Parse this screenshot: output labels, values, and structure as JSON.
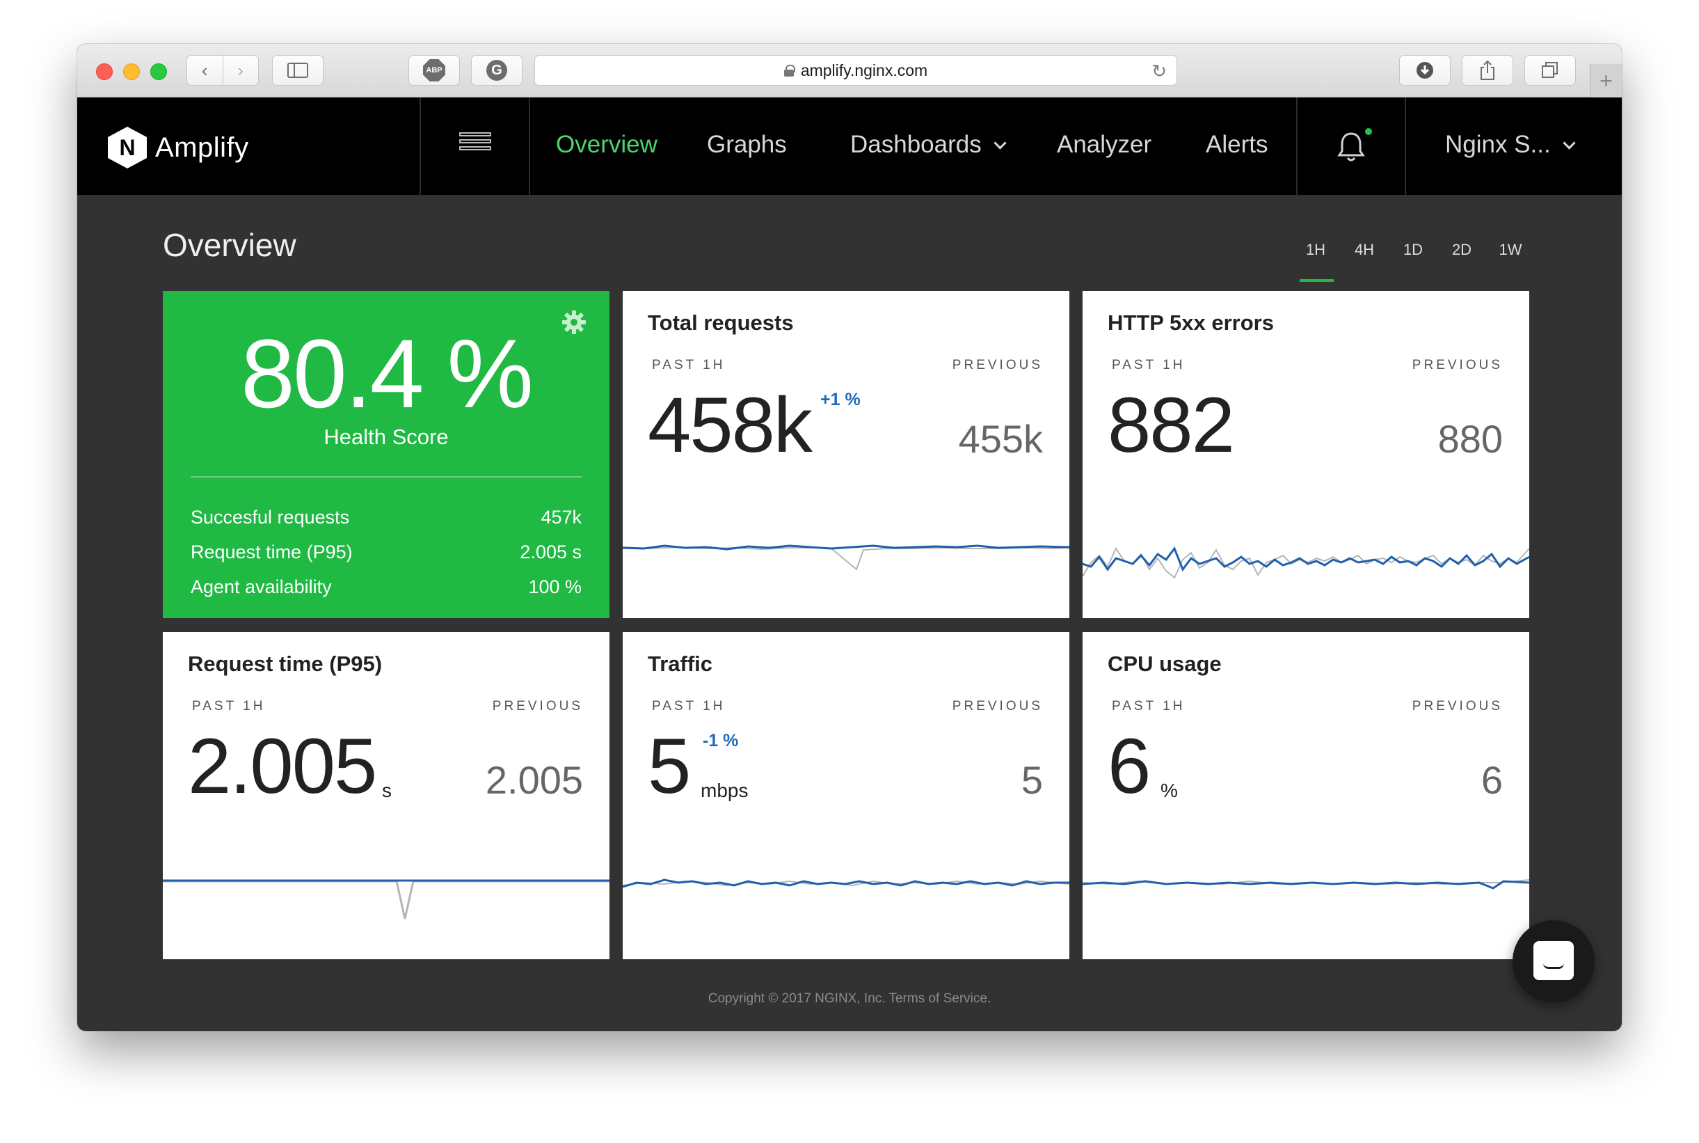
{
  "browser": {
    "url": "amplify.nginx.com",
    "abp_label": "ABP",
    "g_label": "G"
  },
  "navbar": {
    "brand": "Amplify",
    "logo_letter": "N",
    "links": {
      "overview": "Overview",
      "graphs": "Graphs",
      "dashboards": "Dashboards",
      "analyzer": "Analyzer",
      "alerts": "Alerts"
    },
    "user": "Nginx S...",
    "accent_color": "#4cd46e"
  },
  "page": {
    "title": "Overview",
    "time_ranges": [
      "1H",
      "4H",
      "1D",
      "2D",
      "1W"
    ],
    "active_range": "1H"
  },
  "health": {
    "value": "80.4 %",
    "label": "Health Score",
    "color": "#1fb944",
    "stats": [
      {
        "label": "Succesful requests",
        "value": "457k"
      },
      {
        "label": "Request time (P95)",
        "value": "2.005 s"
      },
      {
        "label": "Agent availability",
        "value": "100 %"
      }
    ]
  },
  "cards": {
    "total_requests": {
      "title": "Total requests",
      "past": "PAST 1H",
      "prev": "PREVIOUS",
      "value": "458k",
      "delta": "+1 %",
      "previous_value": "455k"
    },
    "http_5xx": {
      "title": "HTTP 5xx errors",
      "past": "PAST 1H",
      "prev": "PREVIOUS",
      "value": "882",
      "previous_value": "880"
    },
    "request_time": {
      "title": "Request time (P95)",
      "past": "PAST 1H",
      "prev": "PREVIOUS",
      "value": "2.005",
      "unit": "s",
      "previous_value": "2.005"
    },
    "traffic": {
      "title": "Traffic",
      "past": "PAST 1H",
      "prev": "PREVIOUS",
      "value": "5",
      "delta": "-1 %",
      "unit": "mbps",
      "previous_value": "5"
    },
    "cpu": {
      "title": "CPU usage",
      "past": "PAST 1H",
      "prev": "PREVIOUS",
      "value": "6",
      "unit": "%",
      "previous_value": "6"
    }
  },
  "footer": "Copyright © 2017 NGINX, Inc. Terms of Service.",
  "colors": {
    "series_current": "#1f5fad",
    "series_previous": "#b5b5b5"
  }
}
